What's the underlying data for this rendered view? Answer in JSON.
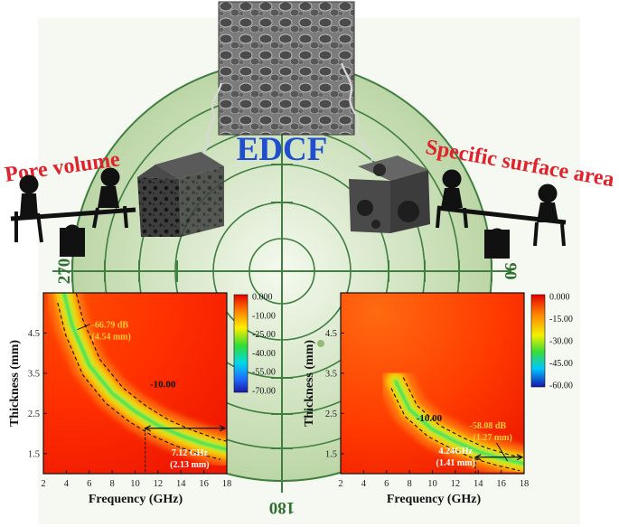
{
  "center_label": "EDCF",
  "left_label": "Pore volume",
  "right_label": "Specific surface area",
  "target_degrees": {
    "left": "270",
    "right": "90",
    "bottom": "180"
  },
  "colors": {
    "center_label": "#1f4fd0",
    "side_labels": "#e0222c",
    "target_line": "#3f7f3f",
    "target_fill": "#cfe3bf"
  },
  "icons": [
    "sem-micrograph",
    "porous-cube-left",
    "porous-cube-right",
    "seesaw-left-icon",
    "seesaw-right-icon"
  ],
  "chart_data": [
    {
      "type": "heatmap",
      "xlabel": "Frequency (GHz)",
      "ylabel": "Thickness (mm)",
      "x_ticks": [
        "2",
        "4",
        "6",
        "8",
        "10",
        "12",
        "14",
        "16",
        "18"
      ],
      "y_ticks": [
        "1.5",
        "2.5",
        "3.5",
        "4.5"
      ],
      "xlim": [
        2,
        18
      ],
      "ylim": [
        1,
        5.5
      ],
      "colorbar": {
        "ticks": [
          "0.000",
          "-10.00",
          "-25.00",
          "-40.00",
          "-55.00",
          "-70.00"
        ],
        "min": -70,
        "max": 0
      },
      "annotations": {
        "min_rl": "-66.79 dB",
        "min_rl_thickness": "(4.54 mm)",
        "contour": "-10.00",
        "bandwidth": "7.12 GHz",
        "bandwidth_thickness": "(2.13 mm)"
      },
      "min_point": {
        "x": 4.8,
        "y": 4.54
      },
      "bandwidth_range": {
        "x": [
          10.88,
          18
        ],
        "y": 2.13
      },
      "ridge": {
        "x": [
          3.8,
          4.5,
          6,
          8,
          10,
          12,
          14,
          16,
          18
        ],
        "y": [
          5.5,
          4.7,
          3.7,
          3.0,
          2.55,
          2.2,
          1.95,
          1.75,
          1.6
        ]
      }
    },
    {
      "type": "heatmap",
      "xlabel": "Frequency (GHz)",
      "ylabel": "Thickness (mm)",
      "x_ticks": [
        "2",
        "4",
        "6",
        "8",
        "10",
        "12",
        "14",
        "16",
        "18"
      ],
      "y_ticks": [
        "1.5",
        "2.5",
        "3.5",
        "4.5"
      ],
      "xlim": [
        2,
        18
      ],
      "ylim": [
        1,
        5.5
      ],
      "colorbar": {
        "ticks": [
          "0.000",
          "-15.00",
          "-30.00",
          "-45.00",
          "-60.00"
        ],
        "min": -60,
        "max": 0
      },
      "annotations": {
        "min_rl": "-58.08 dB",
        "min_rl_thickness": "(1.27 mm)",
        "contour": "-10.00",
        "bandwidth": "4.24GHz",
        "bandwidth_thickness": "(1.41 mm)"
      },
      "min_point": {
        "x": 16.7,
        "y": 1.27
      },
      "bandwidth_range": {
        "x": [
          13.76,
          18
        ],
        "y": 1.41
      },
      "ridge": {
        "x": [
          6.8,
          8,
          10,
          12,
          14,
          16,
          18
        ],
        "y": [
          3.3,
          2.6,
          2.1,
          1.8,
          1.55,
          1.38,
          1.25
        ]
      }
    }
  ]
}
